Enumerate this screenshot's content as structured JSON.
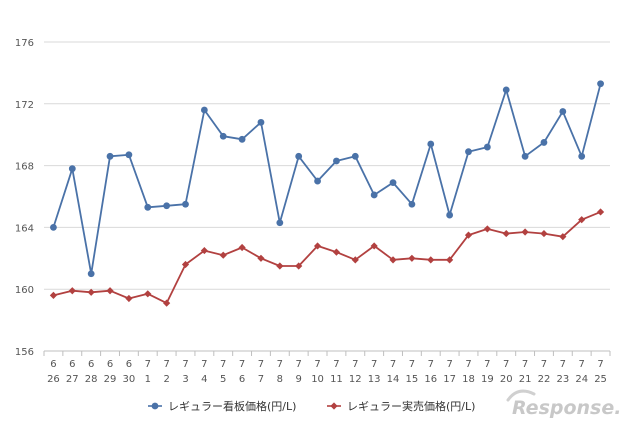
{
  "chart_data": {
    "type": "line",
    "categories": [
      {
        "month": "6",
        "day": "26"
      },
      {
        "month": "6",
        "day": "27"
      },
      {
        "month": "6",
        "day": "28"
      },
      {
        "month": "6",
        "day": "29"
      },
      {
        "month": "6",
        "day": "30"
      },
      {
        "month": "7",
        "day": "1"
      },
      {
        "month": "7",
        "day": "2"
      },
      {
        "month": "7",
        "day": "3"
      },
      {
        "month": "7",
        "day": "4"
      },
      {
        "month": "7",
        "day": "5"
      },
      {
        "month": "7",
        "day": "6"
      },
      {
        "month": "7",
        "day": "7"
      },
      {
        "month": "7",
        "day": "8"
      },
      {
        "month": "7",
        "day": "9"
      },
      {
        "month": "7",
        "day": "10"
      },
      {
        "month": "7",
        "day": "11"
      },
      {
        "month": "7",
        "day": "12"
      },
      {
        "month": "7",
        "day": "13"
      },
      {
        "month": "7",
        "day": "14"
      },
      {
        "month": "7",
        "day": "15"
      },
      {
        "month": "7",
        "day": "16"
      },
      {
        "month": "7",
        "day": "17"
      },
      {
        "month": "7",
        "day": "18"
      },
      {
        "month": "7",
        "day": "19"
      },
      {
        "month": "7",
        "day": "20"
      },
      {
        "month": "7",
        "day": "21"
      },
      {
        "month": "7",
        "day": "22"
      },
      {
        "month": "7",
        "day": "23"
      },
      {
        "month": "7",
        "day": "24"
      },
      {
        "month": "7",
        "day": "25"
      }
    ],
    "ylim": [
      156,
      176
    ],
    "yticks": [
      156,
      160,
      164,
      168,
      172,
      176
    ],
    "grid": true,
    "legend_position": "bottom",
    "series": [
      {
        "name": "レギュラー看板価格(円/L)",
        "color": "#4a72a8",
        "marker": "circle",
        "values": [
          164.0,
          167.8,
          161.0,
          168.6,
          168.7,
          165.3,
          165.4,
          165.5,
          171.6,
          169.9,
          169.7,
          170.8,
          164.3,
          168.6,
          167.0,
          168.3,
          168.6,
          166.1,
          166.9,
          165.5,
          169.4,
          164.8,
          168.9,
          169.2,
          172.9,
          168.6,
          169.5,
          171.5,
          168.6,
          173.3
        ]
      },
      {
        "name": "レギュラー実売価格(円/L)",
        "color": "#b24140",
        "marker": "diamond",
        "values": [
          159.6,
          159.9,
          159.8,
          159.9,
          159.4,
          159.7,
          159.1,
          161.6,
          162.5,
          162.2,
          162.7,
          162.0,
          161.5,
          161.5,
          162.8,
          162.4,
          161.9,
          162.8,
          161.9,
          162.0,
          161.9,
          161.9,
          163.5,
          163.9,
          163.6,
          163.7,
          163.6,
          163.4,
          164.5,
          165.0
        ]
      }
    ]
  },
  "watermark": "Response."
}
